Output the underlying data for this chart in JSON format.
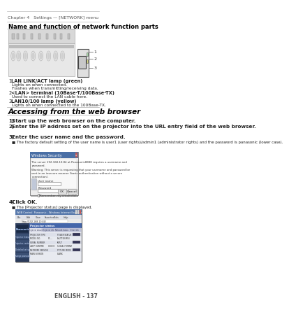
{
  "page_header": "Chapter 4   Settings — [NETWORK] menu",
  "section1_title": "Name and function of network function parts",
  "section2_title": "Accessing from the web browser",
  "parts": [
    {
      "num": "1",
      "bold": "LAN LINK/ACT lamp (green)",
      "lines": [
        "Lights on when connected.",
        "Flashes when transmitting/receiving data."
      ]
    },
    {
      "num": "2",
      "bold": "<LAN> terminal (10Base-T/100Base-TX)",
      "lines": [
        "Used to connect the LAN cable here."
      ]
    },
    {
      "num": "3",
      "bold": "LAN10/100 lamp (yellow)",
      "lines": [
        "Lights on when connected to the 100Base-TX."
      ]
    }
  ],
  "steps": [
    {
      "num": "1)",
      "bold": "Start up the web browser on the computer.",
      "lines": []
    },
    {
      "num": "2)",
      "bold": "Enter the IP address set on the projector into the URL entry field of the web browser.",
      "lines": []
    },
    {
      "num": "3)",
      "bold": "Enter the user name and the password.",
      "lines": [
        "The factory default setting of the user name is user1 (user rights)/admin1 (administrator rights) and the password is panasonic (lower case)."
      ]
    },
    {
      "num": "4)",
      "bold": "Click OK.",
      "lines": [
        "■ The [Projector status] page is displayed."
      ]
    }
  ],
  "footer": "ENGLISH - 137",
  "bg_color": "#ffffff",
  "line_color": "#bbbbbb",
  "text_color": "#222222",
  "section_title_color": "#000000",
  "header_text_color": "#555555",
  "diagram_bg": "#f0f0f0",
  "diagram_edge": "#aaaaaa"
}
